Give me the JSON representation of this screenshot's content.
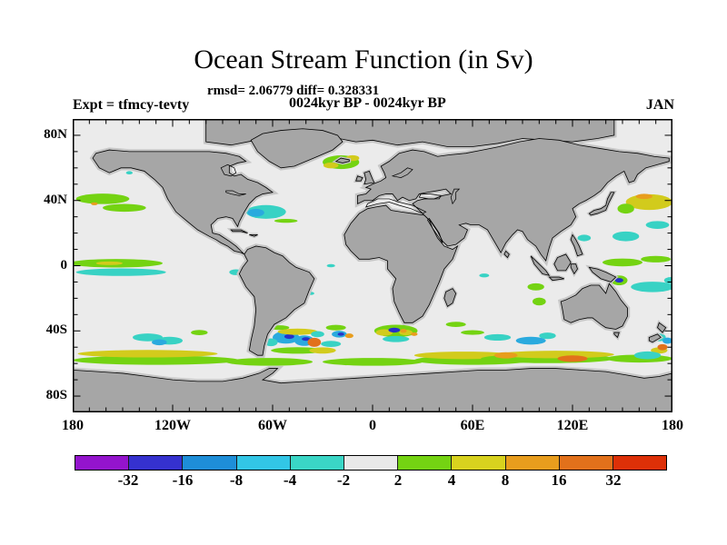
{
  "figure": {
    "title": "Ocean Stream Function (in Sv)",
    "stats_line": "rmsd= 2.06779 diff= 0.328331",
    "period_line": "0024kyr BP - 0024kyr BP",
    "experiment_label": "Expt = tfmcy-tevty",
    "month_label": "JAN"
  },
  "chart_data": {
    "type": "heatmap",
    "title": "Ocean Stream Function (in Sv)",
    "subtitle": "rmsd= 2.06779 diff= 0.328331",
    "comparison": "0024kyr BP - 0024kyr BP",
    "experiment": "tfmcy-tevty",
    "month": "JAN",
    "units": "Sv",
    "projection": "equirectangular world map",
    "lon_range": [
      -180,
      180
    ],
    "lat_range": [
      -90,
      90
    ],
    "grid": false,
    "legend_position": "bottom colorbar",
    "x_axis": {
      "ticks": [
        {
          "label": "180",
          "lon": -180
        },
        {
          "label": "120W",
          "lon": -120
        },
        {
          "label": "60W",
          "lon": -60
        },
        {
          "label": "0",
          "lon": 0
        },
        {
          "label": "60E",
          "lon": 60
        },
        {
          "label": "120E",
          "lon": 120
        },
        {
          "label": "180",
          "lon": 180
        }
      ]
    },
    "y_axis": {
      "ticks": [
        {
          "label": "80N",
          "lat": 80
        },
        {
          "label": "40N",
          "lat": 40
        },
        {
          "label": "0",
          "lat": 0
        },
        {
          "label": "40S",
          "lat": -40
        },
        {
          "label": "80S",
          "lat": -80
        }
      ]
    },
    "colorbar": {
      "levels": [
        -32,
        -16,
        -8,
        -4,
        -2,
        2,
        4,
        8,
        16,
        32
      ],
      "labels": [
        "-32",
        "-16",
        "-8",
        "-4",
        "-2",
        "2",
        "4",
        "8",
        "16",
        "32"
      ],
      "colors": [
        "#9414cd",
        "#3531cf",
        "#1e8ed8",
        "#32c6e6",
        "#3ad6c6",
        "#e9e9e9",
        "#74d312",
        "#d8d21e",
        "#e89d1d",
        "#e2711b",
        "#dd3008"
      ]
    },
    "map_colors": {
      "ocean": "#ebebeb",
      "land": "#a6a6a6",
      "land_halo": "#c6c6c6",
      "coastline": "#000000"
    },
    "palette": {
      "green": "#74d312",
      "yellow": "#d2cb1c",
      "orange": "#e89d1d",
      "darkorange": "#e2711b",
      "cyan": "#38d2c4",
      "skyblue": "#2aaade",
      "deepblue": "#2731c8"
    },
    "anomaly_patches": [
      {
        "lon": -162,
        "lat": 41,
        "rx": 16,
        "ry": 3.2,
        "c": "green"
      },
      {
        "lon": -149,
        "lat": 35.5,
        "rx": 13,
        "ry": 2.4,
        "c": "green"
      },
      {
        "lon": -167,
        "lat": 38,
        "rx": 2,
        "ry": 0.9,
        "c": "orange"
      },
      {
        "lon": -146,
        "lat": 57,
        "rx": 2,
        "ry": 1,
        "c": "cyan"
      },
      {
        "lon": -19,
        "lat": 63.5,
        "rx": 11,
        "ry": 4.2,
        "c": "green"
      },
      {
        "lon": -25,
        "lat": 61.5,
        "rx": 4.5,
        "ry": 1.8,
        "c": "yellow"
      },
      {
        "lon": -12,
        "lat": 66,
        "rx": 4,
        "ry": 1.8,
        "c": "yellow"
      },
      {
        "lon": -64,
        "lat": 33,
        "rx": 12,
        "ry": 4.2,
        "c": "cyan"
      },
      {
        "lon": -70,
        "lat": 32.5,
        "rx": 5,
        "ry": 2.4,
        "c": "skyblue"
      },
      {
        "lon": -52,
        "lat": 27.5,
        "rx": 7,
        "ry": 1.2,
        "c": "green"
      },
      {
        "lon": -77,
        "lat": 21,
        "rx": 1.5,
        "ry": 0.8,
        "c": "green"
      },
      {
        "lon": -154,
        "lat": 1.5,
        "rx": 28,
        "ry": 2.6,
        "c": "green"
      },
      {
        "lon": -158,
        "lat": 1.5,
        "rx": 8,
        "ry": 1.1,
        "c": "yellow"
      },
      {
        "lon": -151,
        "lat": -4,
        "rx": 27,
        "ry": 2.3,
        "c": "cyan"
      },
      {
        "lon": -82,
        "lat": -4,
        "rx": 4,
        "ry": 1.8,
        "c": "cyan"
      },
      {
        "lon": -25,
        "lat": 0,
        "rx": 2.5,
        "ry": 1,
        "c": "cyan"
      },
      {
        "lon": -37,
        "lat": -17,
        "rx": 2,
        "ry": 1,
        "c": "cyan"
      },
      {
        "lon": 67,
        "lat": -6,
        "rx": 3,
        "ry": 1.2,
        "c": "cyan"
      },
      {
        "lon": 98,
        "lat": -13,
        "rx": 5,
        "ry": 2.2,
        "c": "green"
      },
      {
        "lon": 100,
        "lat": -22,
        "rx": 4,
        "ry": 2.4,
        "c": "green"
      },
      {
        "lon": 50,
        "lat": -36,
        "rx": 6,
        "ry": 1.6,
        "c": "green"
      },
      {
        "lon": 166,
        "lat": 39,
        "rx": 14,
        "ry": 4.8,
        "c": "yellow"
      },
      {
        "lon": 152,
        "lat": 35,
        "rx": 5,
        "ry": 3,
        "c": "green"
      },
      {
        "lon": 163,
        "lat": 42.5,
        "rx": 5,
        "ry": 1.6,
        "c": "orange"
      },
      {
        "lon": 152,
        "lat": 18,
        "rx": 8,
        "ry": 3,
        "c": "cyan"
      },
      {
        "lon": 127,
        "lat": 17,
        "rx": 4,
        "ry": 2,
        "c": "cyan"
      },
      {
        "lon": 171,
        "lat": 25,
        "rx": 7,
        "ry": 2.4,
        "c": "cyan"
      },
      {
        "lon": 150,
        "lat": 2,
        "rx": 12,
        "ry": 2.4,
        "c": "green"
      },
      {
        "lon": 170,
        "lat": 4,
        "rx": 9,
        "ry": 2,
        "c": "green"
      },
      {
        "lon": 148,
        "lat": -9,
        "rx": 5,
        "ry": 3,
        "c": "green"
      },
      {
        "lon": 148,
        "lat": -9,
        "rx": 2.5,
        "ry": 1.4,
        "c": "deepblue"
      },
      {
        "lon": 168,
        "lat": -13,
        "rx": 13,
        "ry": 3.2,
        "c": "cyan"
      },
      {
        "lon": 179,
        "lat": -9,
        "rx": 4,
        "ry": 2,
        "c": "cyan"
      },
      {
        "lon": 75,
        "lat": -44,
        "rx": 8,
        "ry": 2,
        "c": "cyan"
      },
      {
        "lon": 95,
        "lat": -46,
        "rx": 9,
        "ry": 2.4,
        "c": "skyblue"
      },
      {
        "lon": 105,
        "lat": -43,
        "rx": 5,
        "ry": 2,
        "c": "cyan"
      },
      {
        "lon": 60,
        "lat": -41,
        "rx": 7,
        "ry": 1.4,
        "c": "green"
      },
      {
        "lon": 14,
        "lat": -40,
        "rx": 13,
        "ry": 3.8,
        "c": "green"
      },
      {
        "lon": 7,
        "lat": -41,
        "rx": 5,
        "ry": 2,
        "c": "yellow"
      },
      {
        "lon": 20,
        "lat": -41,
        "rx": 4,
        "ry": 1.7,
        "c": "yellow"
      },
      {
        "lon": 13,
        "lat": -39.5,
        "rx": 3.5,
        "ry": 1.5,
        "c": "deepblue"
      },
      {
        "lon": 18.5,
        "lat": -40,
        "rx": 2,
        "ry": 1.2,
        "c": "orange"
      },
      {
        "lon": 25,
        "lat": -42,
        "rx": 2,
        "ry": 1.1,
        "c": "orange"
      },
      {
        "lon": 14,
        "lat": -45,
        "rx": 8,
        "ry": 1.9,
        "c": "cyan"
      },
      {
        "lon": -135,
        "lat": -44,
        "rx": 9,
        "ry": 2.4,
        "c": "cyan"
      },
      {
        "lon": -122,
        "lat": -46,
        "rx": 8,
        "ry": 2.4,
        "c": "cyan"
      },
      {
        "lon": -128,
        "lat": -47,
        "rx": 4.5,
        "ry": 1.8,
        "c": "skyblue"
      },
      {
        "lon": -104,
        "lat": -41,
        "rx": 5,
        "ry": 1.6,
        "c": "green"
      },
      {
        "lon": -52,
        "lat": -44,
        "rx": 8,
        "ry": 3.8,
        "c": "skyblue"
      },
      {
        "lon": -50,
        "lat": -43.5,
        "rx": 3,
        "ry": 1.4,
        "c": "deepblue"
      },
      {
        "lon": -41,
        "lat": -46,
        "rx": 6,
        "ry": 3.2,
        "c": "skyblue"
      },
      {
        "lon": -40,
        "lat": -45,
        "rx": 2.5,
        "ry": 1.1,
        "c": "deepblue"
      },
      {
        "lon": -35,
        "lat": -47,
        "rx": 4,
        "ry": 2.8,
        "c": "darkorange"
      },
      {
        "lon": -45,
        "lat": -40.5,
        "rx": 12,
        "ry": 1.9,
        "c": "yellow"
      },
      {
        "lon": -56,
        "lat": -38,
        "rx": 6,
        "ry": 1.4,
        "c": "green"
      },
      {
        "lon": -61,
        "lat": -47,
        "rx": 4,
        "ry": 2.4,
        "c": "cyan"
      },
      {
        "lon": -45,
        "lat": -52,
        "rx": 16,
        "ry": 2,
        "c": "green"
      },
      {
        "lon": -30,
        "lat": -52,
        "rx": 8,
        "ry": 1.9,
        "c": "yellow"
      },
      {
        "lon": -20,
        "lat": -42,
        "rx": 4.5,
        "ry": 2.1,
        "c": "skyblue"
      },
      {
        "lon": -19,
        "lat": -42,
        "rx": 2,
        "ry": 1,
        "c": "deepblue"
      },
      {
        "lon": -14,
        "lat": -43,
        "rx": 2.5,
        "ry": 1.4,
        "c": "orange"
      },
      {
        "lon": -22,
        "lat": -38,
        "rx": 6,
        "ry": 1.7,
        "c": "green"
      },
      {
        "lon": -25,
        "lat": -48,
        "rx": 6,
        "ry": 1.9,
        "c": "cyan"
      },
      {
        "lon": -33,
        "lat": -42,
        "rx": 4,
        "ry": 1.9,
        "c": "cyan"
      },
      {
        "lon": -130,
        "lat": -58,
        "rx": 50,
        "ry": 2.8,
        "c": "green"
      },
      {
        "lon": -135,
        "lat": -54,
        "rx": 42,
        "ry": 2.3,
        "c": "yellow"
      },
      {
        "lon": -62,
        "lat": -59,
        "rx": 26,
        "ry": 2.4,
        "c": "green"
      },
      {
        "lon": 0,
        "lat": -59,
        "rx": 30,
        "ry": 2.4,
        "c": "green"
      },
      {
        "lon": 60,
        "lat": -58,
        "rx": 35,
        "ry": 2.8,
        "c": "green"
      },
      {
        "lon": 55,
        "lat": -55,
        "rx": 30,
        "ry": 2.3,
        "c": "yellow"
      },
      {
        "lon": 105,
        "lat": -57,
        "rx": 40,
        "ry": 2.8,
        "c": "green"
      },
      {
        "lon": 110,
        "lat": -54.5,
        "rx": 35,
        "ry": 2.3,
        "c": "yellow"
      },
      {
        "lon": 80,
        "lat": -55,
        "rx": 7,
        "ry": 1.9,
        "c": "orange"
      },
      {
        "lon": 120,
        "lat": -57,
        "rx": 9,
        "ry": 2,
        "c": "darkorange"
      },
      {
        "lon": 160,
        "lat": -57,
        "rx": 20,
        "ry": 2.4,
        "c": "green"
      },
      {
        "lon": 172,
        "lat": -52,
        "rx": 5,
        "ry": 1.9,
        "c": "yellow"
      },
      {
        "lon": 172,
        "lat": -44,
        "rx": 4,
        "ry": 2.4,
        "c": "cyan"
      },
      {
        "lon": 177,
        "lat": -46,
        "rx": 3,
        "ry": 1.9,
        "c": "skyblue"
      },
      {
        "lon": 174,
        "lat": -50,
        "rx": 3,
        "ry": 1.9,
        "c": "darkorange"
      },
      {
        "lon": 165,
        "lat": -55,
        "rx": 8,
        "ry": 2.4,
        "c": "cyan"
      }
    ]
  }
}
